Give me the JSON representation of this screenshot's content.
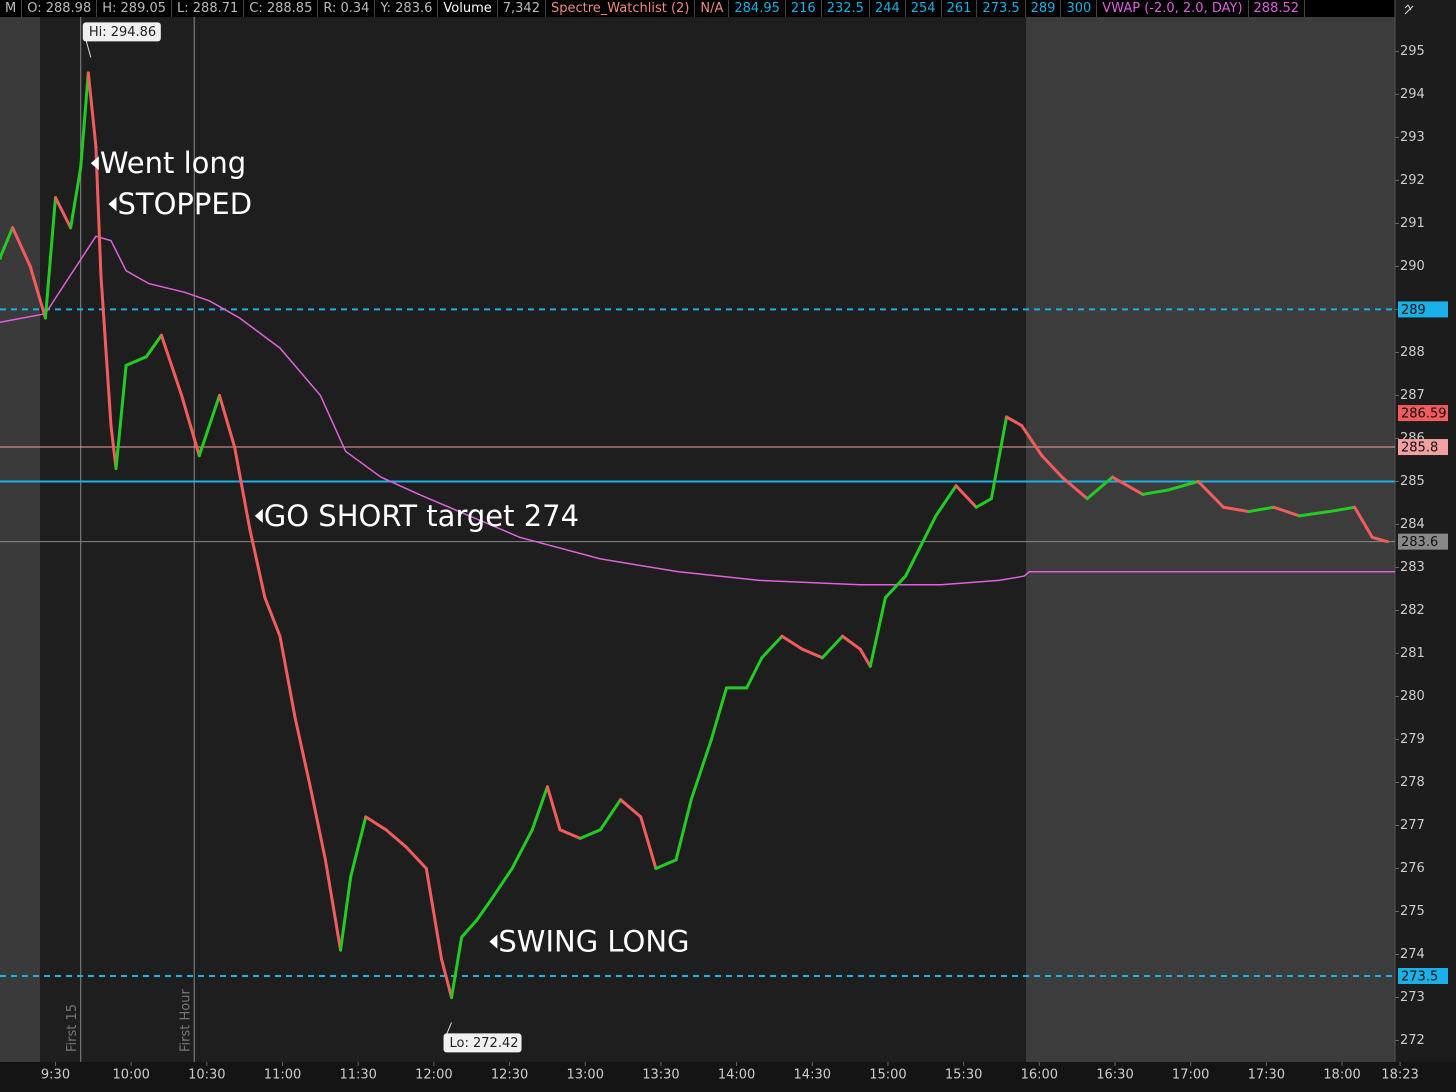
{
  "header": [
    {
      "text": "M",
      "color": "#bbbbbb"
    },
    {
      "text": "O: 288.98",
      "color": "#bbbbbb"
    },
    {
      "text": "H: 289.05",
      "color": "#bbbbbb"
    },
    {
      "text": "L: 288.71",
      "color": "#bbbbbb"
    },
    {
      "text": "C: 288.85",
      "color": "#bbbbbb"
    },
    {
      "text": "R: 0.34",
      "color": "#bbbbbb"
    },
    {
      "text": "Y: 283.6",
      "color": "#bbbbbb"
    },
    {
      "text": "Volume",
      "color": "#ffffff"
    },
    {
      "text": "7,342",
      "color": "#bbbbbb"
    },
    {
      "text": "Spectre_Watchlist (2)",
      "color": "#f08a80"
    },
    {
      "text": "N/A",
      "color": "#f08a80"
    },
    {
      "text": "284.95",
      "color": "#1ab0e8"
    },
    {
      "text": "216",
      "color": "#1ab0e8"
    },
    {
      "text": "232.5",
      "color": "#1ab0e8"
    },
    {
      "text": "244",
      "color": "#1ab0e8"
    },
    {
      "text": "254",
      "color": "#1ab0e8"
    },
    {
      "text": "261",
      "color": "#1ab0e8"
    },
    {
      "text": "273.5",
      "color": "#1ab0e8"
    },
    {
      "text": "289",
      "color": "#1ab0e8"
    },
    {
      "text": "300",
      "color": "#1ab0e8"
    },
    {
      "text": "VWAP (-2.0, 2.0, DAY)",
      "color": "#e060e0"
    },
    {
      "text": "288.52",
      "color": "#e060e0"
    }
  ],
  "chart_data": {
    "type": "line",
    "x": [
      "9:08",
      "9:13",
      "9:20",
      "9:26",
      "9:30",
      "9:36",
      "9:40",
      "9:43",
      "9:46",
      "9:48",
      "9:52",
      "9:54",
      "9:58",
      "10:06",
      "10:12",
      "10:20",
      "10:27",
      "10:35",
      "10:41",
      "10:47",
      "10:53",
      "10:59",
      "11:05",
      "11:11",
      "11:17",
      "11:23",
      "11:27",
      "11:33",
      "11:41",
      "11:49",
      "11:57",
      "12:03",
      "12:07",
      "12:11",
      "12:17",
      "12:23",
      "12:31",
      "12:39",
      "12:45",
      "12:50",
      "12:58",
      "13:06",
      "13:14",
      "13:22",
      "13:28",
      "13:36",
      "13:42",
      "13:50",
      "13:56",
      "14:04",
      "14:10",
      "14:18",
      "14:26",
      "14:34",
      "14:42",
      "14:49",
      "14:53",
      "14:59",
      "15:07",
      "15:13",
      "15:19",
      "15:27",
      "15:35",
      "15:41",
      "15:47",
      "15:53",
      "16:01",
      "16:09",
      "16:19",
      "16:29",
      "16:41",
      "16:51",
      "17:03",
      "17:13",
      "17:23",
      "17:33",
      "17:43",
      "17:55",
      "18:05",
      "18:12",
      "18:18"
    ],
    "values": [
      290.2,
      290.9,
      290,
      288.8,
      291.6,
      290.9,
      292.3,
      294.5,
      292.8,
      289.8,
      286.3,
      285.3,
      287.7,
      287.9,
      288.4,
      287,
      285.6,
      287,
      285.8,
      283.9,
      282.3,
      281.4,
      279.5,
      277.9,
      276.2,
      274.1,
      275.8,
      277.2,
      276.9,
      276.5,
      276,
      273.9,
      273,
      274.4,
      274.8,
      275.3,
      276,
      276.9,
      277.9,
      276.9,
      276.7,
      276.9,
      277.6,
      277.2,
      276,
      276.2,
      277.6,
      279,
      280.2,
      280.2,
      280.9,
      281.4,
      281.1,
      280.9,
      281.4,
      281.1,
      280.7,
      282.3,
      282.8,
      283.5,
      284.2,
      284.9,
      284.4,
      284.6,
      286.5,
      286.3,
      285.6,
      285.1,
      284.6,
      285.1,
      284.7,
      284.8,
      285,
      284.4,
      284.3,
      284.4,
      284.2,
      284.3,
      284.4,
      283.7,
      283.6
    ],
    "up_color": "#22cc22",
    "down_color": "#f25c5c",
    "vwap": {
      "x": [
        "9:08",
        "9:26",
        "9:36",
        "9:46",
        "9:52",
        "9:58",
        "10:07",
        "10:21",
        "10:31",
        "10:43",
        "10:59",
        "11:15",
        "11:25",
        "11:39",
        "11:54",
        "12:14",
        "12:34",
        "13:06",
        "13:37",
        "14:09",
        "14:49",
        "15:21",
        "15:44",
        "15:54",
        "15:56",
        "18:21"
      ],
      "values": [
        288.7,
        288.9,
        289.8,
        290.7,
        290.6,
        289.9,
        289.6,
        289.4,
        289.2,
        288.8,
        288.1,
        287,
        285.7,
        285.1,
        284.7,
        284.2,
        283.7,
        283.2,
        282.9,
        282.7,
        282.6,
        282.6,
        282.7,
        282.8,
        282.9,
        282.9
      ],
      "color": "#e060e0"
    },
    "xlim": [
      "9:08",
      "18:21"
    ],
    "xticks": [
      "9:30",
      "10:00",
      "10:30",
      "11:00",
      "11:30",
      "12:00",
      "12:30",
      "13:00",
      "13:30",
      "14:00",
      "14:30",
      "15:00",
      "15:30",
      "16:00",
      "16:30",
      "17:00",
      "17:30",
      "18:00",
      "18:23"
    ],
    "ylim": [
      271.5,
      295.8
    ],
    "yticks": [
      272,
      273,
      274,
      275,
      276,
      277,
      278,
      279,
      280,
      281,
      282,
      283,
      284,
      285,
      286,
      287,
      288,
      289,
      290,
      291,
      292,
      293,
      294,
      295
    ],
    "levels": [
      {
        "value": 289,
        "color": "#1ab0e8",
        "style": "dashed",
        "tag": true
      },
      {
        "value": 273.5,
        "color": "#1ab0e8",
        "style": "dashed",
        "tag": true
      },
      {
        "value": 285,
        "color": "#1ab0e8",
        "style": "solid",
        "tag": false
      },
      {
        "value": 285.8,
        "color": "#f2a0a0",
        "style": "solid",
        "tag": true
      },
      {
        "value": 283.6,
        "color": "#888888",
        "style": "solid",
        "tag": true
      },
      {
        "value": 286.59,
        "color": "#f25c5c",
        "style": "none",
        "tag": true
      }
    ],
    "markers": [
      {
        "x": "9:40",
        "label": "First 15"
      },
      {
        "x": "10:25",
        "label": "First Hour"
      }
    ],
    "annotations": [
      {
        "text": "Went long",
        "x": "9:44",
        "y": 292.4
      },
      {
        "text": "STOPPED",
        "x": "9:51",
        "y": 291.45
      },
      {
        "text": "GO SHORT target 274",
        "x": "10:49",
        "y": 284.2
      },
      {
        "text": "SWING LONG",
        "x": "12:22",
        "y": 274.3
      }
    ],
    "hi": {
      "text": "Hi: 294.86",
      "x": "9:44",
      "y": 294.86
    },
    "lo": {
      "text": "Lo: 272.42",
      "x": "12:07",
      "y": 272.42
    }
  }
}
